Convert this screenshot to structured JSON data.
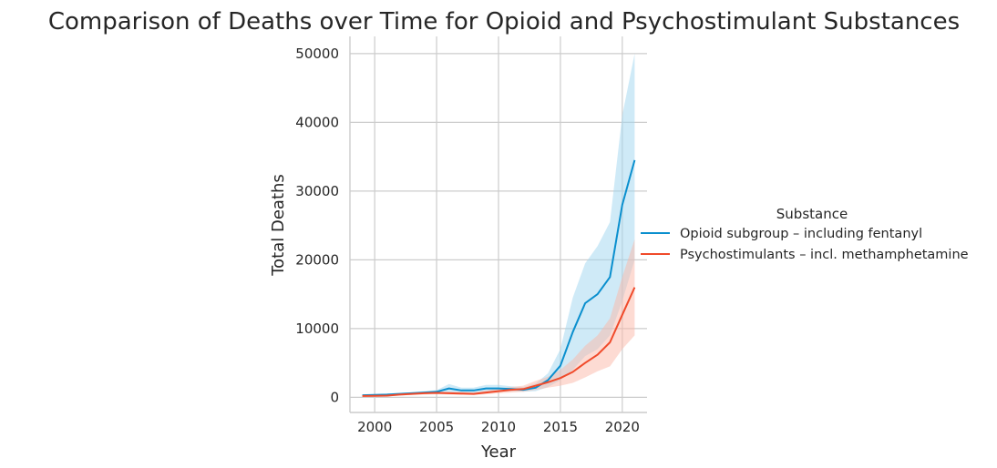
{
  "chart_data": {
    "type": "line",
    "title": "Comparison of Deaths over Time for Opioid and Psychostimulant Substances",
    "xlabel": "Year",
    "ylabel": "Total Deaths",
    "xlim": [
      1998,
      2022
    ],
    "ylim": [
      -2200,
      52500
    ],
    "xticks": [
      2000,
      2005,
      2010,
      2015,
      2020
    ],
    "yticks": [
      0,
      10000,
      20000,
      30000,
      40000,
      50000
    ],
    "grid": true,
    "legend": {
      "title": "Substance",
      "placement": "right-outside"
    },
    "x": [
      1999,
      2000,
      2001,
      2002,
      2003,
      2004,
      2005,
      2006,
      2007,
      2008,
      2009,
      2010,
      2011,
      2012,
      2013,
      2014,
      2015,
      2016,
      2017,
      2018,
      2019,
      2020,
      2021
    ],
    "series": [
      {
        "name": "Opioid subgroup – including fentanyl",
        "color": "#0a8fce",
        "fill": "#9fd6f0",
        "values": [
          300,
          350,
          400,
          500,
          600,
          700,
          800,
          1300,
          1000,
          1000,
          1300,
          1300,
          1200,
          1100,
          1400,
          2500,
          4600,
          9500,
          13700,
          15000,
          17500,
          28000,
          34500
        ],
        "lower": [
          200,
          250,
          300,
          400,
          450,
          500,
          550,
          650,
          650,
          650,
          800,
          850,
          900,
          800,
          900,
          1500,
          2500,
          4000,
          6000,
          7000,
          9000,
          14000,
          20000
        ],
        "upper": [
          400,
          450,
          550,
          650,
          750,
          900,
          1050,
          1950,
          1400,
          1400,
          1800,
          1800,
          1600,
          1500,
          2000,
          3500,
          7000,
          14500,
          19500,
          22000,
          25500,
          41000,
          50000
        ]
      },
      {
        "name": "Psychostimulants – incl. methamphetamine",
        "color": "#f04a2a",
        "fill": "#fcb8a8",
        "values": [
          200,
          220,
          250,
          400,
          500,
          600,
          650,
          600,
          550,
          500,
          700,
          900,
          1100,
          1200,
          1700,
          2200,
          2800,
          3700,
          5000,
          6200,
          8000,
          12000,
          16000
        ],
        "lower": [
          100,
          120,
          150,
          250,
          350,
          400,
          450,
          400,
          350,
          350,
          450,
          600,
          700,
          800,
          1100,
          1400,
          1700,
          2100,
          2900,
          3800,
          4500,
          7000,
          9000
        ],
        "upper": [
          300,
          330,
          380,
          550,
          650,
          800,
          850,
          800,
          800,
          750,
          1000,
          1300,
          1500,
          1700,
          2400,
          3000,
          4000,
          5500,
          7500,
          9000,
          11500,
          17500,
          23000
        ]
      }
    ]
  }
}
